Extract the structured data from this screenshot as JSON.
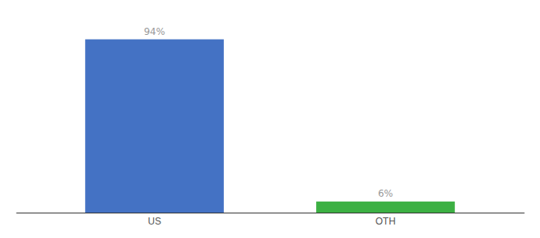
{
  "chart_data": {
    "type": "bar",
    "categories": [
      "US",
      "OTH"
    ],
    "values": [
      94,
      6
    ],
    "colors": [
      "#4472c4",
      "#3cb043"
    ],
    "ylim": [
      0,
      105
    ],
    "data_labels": true,
    "value_labels": [
      "94%",
      "6%"
    ],
    "tick_labels": "x",
    "grid": false
  }
}
